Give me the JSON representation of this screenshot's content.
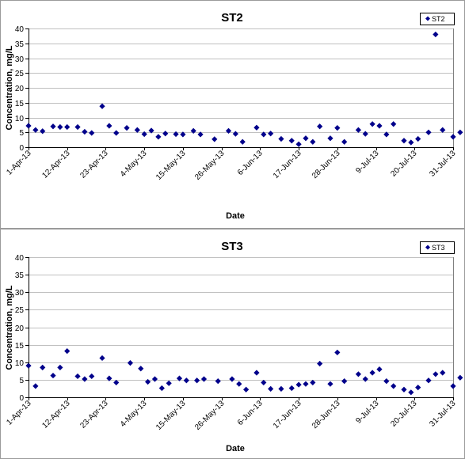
{
  "chart_data": [
    {
      "id": "st2",
      "type": "scatter",
      "title": "ST2",
      "xlabel": "Date",
      "ylabel": "Concentration, mg/L",
      "ylim": [
        0,
        40
      ],
      "yticks": [
        0,
        5,
        10,
        15,
        20,
        25,
        30,
        35,
        40
      ],
      "xlim": [
        "2013-04-01",
        "2013-07-31"
      ],
      "xticks": [
        "1-Apr-13",
        "12-Apr-13",
        "23-Apr-13",
        "4-May-13",
        "15-May-13",
        "26-May-13",
        "6-Jun-13",
        "17-Jun-13",
        "28-Jun-13",
        "9-Jul-13",
        "20-Jul-13",
        "31-Jul-13"
      ],
      "grid": "horizontal",
      "legend": "top-right",
      "marker_color": "#00008b",
      "series": [
        {
          "name": "ST2",
          "points": [
            [
              "2013-04-01",
              7.2
            ],
            [
              "2013-04-03",
              5.8
            ],
            [
              "2013-04-05",
              5.4
            ],
            [
              "2013-04-08",
              7.0
            ],
            [
              "2013-04-10",
              6.8
            ],
            [
              "2013-04-12",
              6.8
            ],
            [
              "2013-04-15",
              6.8
            ],
            [
              "2013-04-17",
              5.2
            ],
            [
              "2013-04-19",
              4.8
            ],
            [
              "2013-04-22",
              13.8
            ],
            [
              "2013-04-24",
              7.2
            ],
            [
              "2013-04-26",
              4.8
            ],
            [
              "2013-04-29",
              6.5
            ],
            [
              "2013-05-02",
              5.8
            ],
            [
              "2013-05-04",
              4.4
            ],
            [
              "2013-05-06",
              5.6
            ],
            [
              "2013-05-08",
              3.5
            ],
            [
              "2013-05-10",
              4.6
            ],
            [
              "2013-05-13",
              4.4
            ],
            [
              "2013-05-15",
              4.3
            ],
            [
              "2013-05-18",
              5.5
            ],
            [
              "2013-05-20",
              4.3
            ],
            [
              "2013-05-24",
              2.7
            ],
            [
              "2013-05-28",
              5.5
            ],
            [
              "2013-05-30",
              4.5
            ],
            [
              "2013-06-01",
              1.8
            ],
            [
              "2013-06-05",
              6.6
            ],
            [
              "2013-06-07",
              4.3
            ],
            [
              "2013-06-09",
              4.6
            ],
            [
              "2013-06-12",
              2.8
            ],
            [
              "2013-06-15",
              2.2
            ],
            [
              "2013-06-17",
              1.0
            ],
            [
              "2013-06-19",
              3.0
            ],
            [
              "2013-06-21",
              1.8
            ],
            [
              "2013-06-23",
              7.0
            ],
            [
              "2013-06-26",
              3.0
            ],
            [
              "2013-06-28",
              6.5
            ],
            [
              "2013-06-30",
              1.8
            ],
            [
              "2013-07-04",
              5.8
            ],
            [
              "2013-07-06",
              4.5
            ],
            [
              "2013-07-08",
              7.8
            ],
            [
              "2013-07-10",
              7.2
            ],
            [
              "2013-07-12",
              4.3
            ],
            [
              "2013-07-14",
              7.8
            ],
            [
              "2013-07-17",
              2.2
            ],
            [
              "2013-07-19",
              1.6
            ],
            [
              "2013-07-21",
              2.8
            ],
            [
              "2013-07-24",
              5.0
            ],
            [
              "2013-07-26",
              38.0
            ],
            [
              "2013-07-28",
              5.8
            ],
            [
              "2013-07-31",
              3.5
            ],
            [
              "2013-08-02",
              5.0
            ]
          ]
        }
      ]
    },
    {
      "id": "st3",
      "type": "scatter",
      "title": "ST3",
      "xlabel": "Date",
      "ylabel": "Concentration, mg/L",
      "ylim": [
        0,
        40
      ],
      "yticks": [
        0,
        5,
        10,
        15,
        20,
        25,
        30,
        35,
        40
      ],
      "xlim": [
        "2013-04-01",
        "2013-07-31"
      ],
      "xticks": [
        "1-Apr-13",
        "12-Apr-13",
        "23-Apr-13",
        "4-May-13",
        "15-May-13",
        "26-May-13",
        "6-Jun-13",
        "17-Jun-13",
        "28-Jun-13",
        "9-Jul-13",
        "20-Jul-13",
        "31-Jul-13"
      ],
      "grid": "horizontal",
      "legend": "top-right",
      "marker_color": "#00008b",
      "series": [
        {
          "name": "ST3",
          "points": [
            [
              "2013-04-01",
              9.0
            ],
            [
              "2013-04-03",
              3.2
            ],
            [
              "2013-04-05",
              8.5
            ],
            [
              "2013-04-08",
              6.2
            ],
            [
              "2013-04-10",
              8.5
            ],
            [
              "2013-04-12",
              13.2
            ],
            [
              "2013-04-15",
              6.0
            ],
            [
              "2013-04-17",
              5.2
            ],
            [
              "2013-04-19",
              6.0
            ],
            [
              "2013-04-22",
              11.2
            ],
            [
              "2013-04-24",
              5.4
            ],
            [
              "2013-04-26",
              4.2
            ],
            [
              "2013-04-30",
              9.8
            ],
            [
              "2013-05-03",
              8.2
            ],
            [
              "2013-05-05",
              4.4
            ],
            [
              "2013-05-07",
              5.2
            ],
            [
              "2013-05-09",
              2.6
            ],
            [
              "2013-05-11",
              4.0
            ],
            [
              "2013-05-14",
              5.4
            ],
            [
              "2013-05-16",
              4.8
            ],
            [
              "2013-05-19",
              4.8
            ],
            [
              "2013-05-21",
              5.2
            ],
            [
              "2013-05-25",
              4.6
            ],
            [
              "2013-05-29",
              5.2
            ],
            [
              "2013-05-31",
              3.8
            ],
            [
              "2013-06-02",
              2.2
            ],
            [
              "2013-06-05",
              7.0
            ],
            [
              "2013-06-07",
              4.2
            ],
            [
              "2013-06-09",
              2.4
            ],
            [
              "2013-06-12",
              2.4
            ],
            [
              "2013-06-15",
              2.6
            ],
            [
              "2013-06-17",
              3.6
            ],
            [
              "2013-06-19",
              3.8
            ],
            [
              "2013-06-21",
              4.2
            ],
            [
              "2013-06-23",
              9.6
            ],
            [
              "2013-06-26",
              3.8
            ],
            [
              "2013-06-28",
              12.8
            ],
            [
              "2013-06-30",
              4.6
            ],
            [
              "2013-07-04",
              6.6
            ],
            [
              "2013-07-06",
              5.2
            ],
            [
              "2013-07-08",
              7.0
            ],
            [
              "2013-07-10",
              8.0
            ],
            [
              "2013-07-12",
              4.6
            ],
            [
              "2013-07-14",
              3.2
            ],
            [
              "2013-07-17",
              2.2
            ],
            [
              "2013-07-19",
              1.4
            ],
            [
              "2013-07-21",
              2.8
            ],
            [
              "2013-07-24",
              4.8
            ],
            [
              "2013-07-26",
              6.6
            ],
            [
              "2013-07-28",
              7.0
            ],
            [
              "2013-07-31",
              3.2
            ],
            [
              "2013-08-02",
              5.6
            ]
          ]
        }
      ]
    }
  ]
}
